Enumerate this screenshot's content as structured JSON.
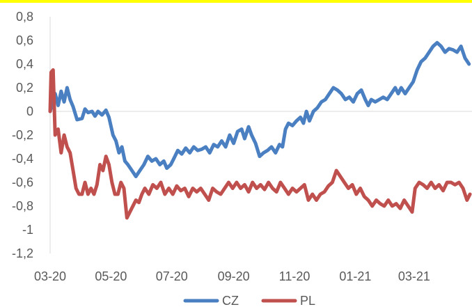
{
  "frame": {
    "top_border_color": "#ffff00"
  },
  "chart_data": {
    "type": "line",
    "title": "",
    "xlabel": "",
    "ylabel": "",
    "x_range": [
      "2020-03-01",
      "2021-04-28"
    ],
    "ylim": [
      -1.2,
      0.8
    ],
    "y_ticks": [
      0.8,
      0.6,
      0.4,
      0.2,
      0,
      -0.2,
      -0.4,
      -0.6,
      -0.8,
      -1,
      -1.2
    ],
    "y_tick_labels": [
      "0,8",
      "0,6",
      "0,4",
      "0,2",
      "0",
      "-0,2",
      "-0,4",
      "-0,6",
      "-0,8",
      "-1",
      "-1,2"
    ],
    "x_ticks": [
      "2020-03-01",
      "2020-05-01",
      "2020-07-01",
      "2020-09-01",
      "2020-11-01",
      "2021-01-01",
      "2021-03-01"
    ],
    "x_tick_labels": [
      "03-20",
      "05-20",
      "07-20",
      "09-20",
      "11-20",
      "01-21",
      "03-21"
    ],
    "grid": false,
    "legend_position": "bottom",
    "series": [
      {
        "name": "CZ",
        "color": "#4a7fc1",
        "points": [
          [
            "2020-03-01",
            0.0
          ],
          [
            "2020-03-06",
            0.15
          ],
          [
            "2020-03-09",
            0.05
          ],
          [
            "2020-03-12",
            0.17
          ],
          [
            "2020-03-15",
            0.08
          ],
          [
            "2020-03-18",
            0.2
          ],
          [
            "2020-03-21",
            0.1
          ],
          [
            "2020-03-24",
            0.04
          ],
          [
            "2020-03-28",
            -0.07
          ],
          [
            "2020-04-02",
            -0.06
          ],
          [
            "2020-04-05",
            0.02
          ],
          [
            "2020-04-08",
            -0.01
          ],
          [
            "2020-04-12",
            0.0
          ],
          [
            "2020-04-15",
            -0.04
          ],
          [
            "2020-04-18",
            0.0
          ],
          [
            "2020-04-22",
            -0.03
          ],
          [
            "2020-04-26",
            0.01
          ],
          [
            "2020-04-29",
            -0.05
          ],
          [
            "2020-05-03",
            -0.2
          ],
          [
            "2020-05-06",
            -0.25
          ],
          [
            "2020-05-09",
            -0.35
          ],
          [
            "2020-05-12",
            -0.3
          ],
          [
            "2020-05-15",
            -0.42
          ],
          [
            "2020-05-18",
            -0.45
          ],
          [
            "2020-05-22",
            -0.5
          ],
          [
            "2020-05-26",
            -0.55
          ],
          [
            "2020-05-30",
            -0.5
          ],
          [
            "2020-06-03",
            -0.45
          ],
          [
            "2020-06-07",
            -0.38
          ],
          [
            "2020-06-11",
            -0.42
          ],
          [
            "2020-06-15",
            -0.4
          ],
          [
            "2020-06-19",
            -0.45
          ],
          [
            "2020-06-23",
            -0.42
          ],
          [
            "2020-06-26",
            -0.48
          ],
          [
            "2020-06-30",
            -0.45
          ],
          [
            "2020-07-03",
            -0.4
          ],
          [
            "2020-07-07",
            -0.33
          ],
          [
            "2020-07-11",
            -0.36
          ],
          [
            "2020-07-15",
            -0.31
          ],
          [
            "2020-07-19",
            -0.35
          ],
          [
            "2020-07-23",
            -0.3
          ],
          [
            "2020-07-27",
            -0.33
          ],
          [
            "2020-07-31",
            -0.32
          ],
          [
            "2020-08-04",
            -0.3
          ],
          [
            "2020-08-08",
            -0.35
          ],
          [
            "2020-08-12",
            -0.28
          ],
          [
            "2020-08-16",
            -0.3
          ],
          [
            "2020-08-20",
            -0.25
          ],
          [
            "2020-08-24",
            -0.3
          ],
          [
            "2020-08-28",
            -0.2
          ],
          [
            "2020-09-01",
            -0.27
          ],
          [
            "2020-09-05",
            -0.17
          ],
          [
            "2020-09-09",
            -0.15
          ],
          [
            "2020-09-12",
            -0.23
          ],
          [
            "2020-09-16",
            -0.13
          ],
          [
            "2020-09-19",
            -0.2
          ],
          [
            "2020-09-23",
            -0.27
          ],
          [
            "2020-09-27",
            -0.38
          ],
          [
            "2020-10-01",
            -0.35
          ],
          [
            "2020-10-05",
            -0.33
          ],
          [
            "2020-10-09",
            -0.3
          ],
          [
            "2020-10-13",
            -0.35
          ],
          [
            "2020-10-17",
            -0.28
          ],
          [
            "2020-10-20",
            -0.3
          ],
          [
            "2020-10-23",
            -0.15
          ],
          [
            "2020-10-26",
            -0.1
          ],
          [
            "2020-10-30",
            -0.12
          ],
          [
            "2020-11-03",
            -0.08
          ],
          [
            "2020-11-07",
            -0.05
          ],
          [
            "2020-11-10",
            -0.1
          ],
          [
            "2020-11-13",
            0.0
          ],
          [
            "2020-11-16",
            -0.08
          ],
          [
            "2020-11-20",
            0.0
          ],
          [
            "2020-11-24",
            0.03
          ],
          [
            "2020-11-28",
            0.08
          ],
          [
            "2020-12-02",
            0.1
          ],
          [
            "2020-12-06",
            0.15
          ],
          [
            "2020-12-10",
            0.2
          ],
          [
            "2020-12-14",
            0.18
          ],
          [
            "2020-12-18",
            0.15
          ],
          [
            "2020-12-22",
            0.1
          ],
          [
            "2020-12-26",
            0.12
          ],
          [
            "2020-12-30",
            0.08
          ],
          [
            "2021-01-03",
            0.15
          ],
          [
            "2021-01-07",
            0.18
          ],
          [
            "2021-01-11",
            0.1
          ],
          [
            "2021-01-14",
            0.05
          ],
          [
            "2021-01-17",
            0.1
          ],
          [
            "2021-01-21",
            0.08
          ],
          [
            "2021-01-25",
            0.1
          ],
          [
            "2021-01-29",
            0.12
          ],
          [
            "2021-02-02",
            0.1
          ],
          [
            "2021-02-06",
            0.15
          ],
          [
            "2021-02-10",
            0.2
          ],
          [
            "2021-02-13",
            0.15
          ],
          [
            "2021-02-16",
            0.2
          ],
          [
            "2021-02-20",
            0.15
          ],
          [
            "2021-02-24",
            0.2
          ],
          [
            "2021-02-28",
            0.25
          ],
          [
            "2021-03-04",
            0.35
          ],
          [
            "2021-03-08",
            0.42
          ],
          [
            "2021-03-12",
            0.45
          ],
          [
            "2021-03-16",
            0.5
          ],
          [
            "2021-03-20",
            0.55
          ],
          [
            "2021-03-24",
            0.58
          ],
          [
            "2021-03-28",
            0.55
          ],
          [
            "2021-04-01",
            0.5
          ],
          [
            "2021-04-05",
            0.53
          ],
          [
            "2021-04-09",
            0.52
          ],
          [
            "2021-04-13",
            0.5
          ],
          [
            "2021-04-17",
            0.55
          ],
          [
            "2021-04-21",
            0.45
          ],
          [
            "2021-04-25",
            0.4
          ]
        ]
      },
      {
        "name": "PL",
        "color": "#c0504d",
        "points": [
          [
            "2020-03-01",
            0.0
          ],
          [
            "2020-03-02",
            0.33
          ],
          [
            "2020-03-04",
            0.35
          ],
          [
            "2020-03-06",
            -0.2
          ],
          [
            "2020-03-09",
            -0.15
          ],
          [
            "2020-03-12",
            -0.35
          ],
          [
            "2020-03-15",
            -0.2
          ],
          [
            "2020-03-18",
            -0.3
          ],
          [
            "2020-03-21",
            -0.35
          ],
          [
            "2020-03-24",
            -0.5
          ],
          [
            "2020-03-27",
            -0.65
          ],
          [
            "2020-03-30",
            -0.7
          ],
          [
            "2020-04-02",
            -0.7
          ],
          [
            "2020-04-05",
            -0.6
          ],
          [
            "2020-04-08",
            -0.7
          ],
          [
            "2020-04-11",
            -0.65
          ],
          [
            "2020-04-14",
            -0.7
          ],
          [
            "2020-04-17",
            -0.62
          ],
          [
            "2020-04-20",
            -0.45
          ],
          [
            "2020-04-23",
            -0.5
          ],
          [
            "2020-04-26",
            -0.38
          ],
          [
            "2020-04-29",
            -0.45
          ],
          [
            "2020-05-02",
            -0.6
          ],
          [
            "2020-05-05",
            -0.7
          ],
          [
            "2020-05-08",
            -0.7
          ],
          [
            "2020-05-11",
            -0.6
          ],
          [
            "2020-05-14",
            -0.65
          ],
          [
            "2020-05-17",
            -0.9
          ],
          [
            "2020-05-20",
            -0.85
          ],
          [
            "2020-05-23",
            -0.8
          ],
          [
            "2020-05-26",
            -0.75
          ],
          [
            "2020-05-29",
            -0.77
          ],
          [
            "2020-06-01",
            -0.7
          ],
          [
            "2020-06-04",
            -0.65
          ],
          [
            "2020-06-08",
            -0.7
          ],
          [
            "2020-06-12",
            -0.62
          ],
          [
            "2020-06-16",
            -0.65
          ],
          [
            "2020-06-20",
            -0.6
          ],
          [
            "2020-06-24",
            -0.7
          ],
          [
            "2020-06-28",
            -0.65
          ],
          [
            "2020-07-02",
            -0.7
          ],
          [
            "2020-07-06",
            -0.63
          ],
          [
            "2020-07-10",
            -0.67
          ],
          [
            "2020-07-14",
            -0.65
          ],
          [
            "2020-07-18",
            -0.72
          ],
          [
            "2020-07-22",
            -0.65
          ],
          [
            "2020-07-26",
            -0.68
          ],
          [
            "2020-07-30",
            -0.65
          ],
          [
            "2020-08-03",
            -0.7
          ],
          [
            "2020-08-07",
            -0.75
          ],
          [
            "2020-08-11",
            -0.65
          ],
          [
            "2020-08-15",
            -0.68
          ],
          [
            "2020-08-19",
            -0.7
          ],
          [
            "2020-08-23",
            -0.65
          ],
          [
            "2020-08-27",
            -0.6
          ],
          [
            "2020-08-31",
            -0.65
          ],
          [
            "2020-09-04",
            -0.6
          ],
          [
            "2020-09-08",
            -0.65
          ],
          [
            "2020-09-12",
            -0.62
          ],
          [
            "2020-09-16",
            -0.68
          ],
          [
            "2020-09-20",
            -0.6
          ],
          [
            "2020-09-24",
            -0.65
          ],
          [
            "2020-09-28",
            -0.62
          ],
          [
            "2020-10-02",
            -0.66
          ],
          [
            "2020-10-06",
            -0.6
          ],
          [
            "2020-10-10",
            -0.65
          ],
          [
            "2020-10-14",
            -0.68
          ],
          [
            "2020-10-18",
            -0.6
          ],
          [
            "2020-10-22",
            -0.65
          ],
          [
            "2020-10-26",
            -0.7
          ],
          [
            "2020-10-30",
            -0.65
          ],
          [
            "2020-11-03",
            -0.68
          ],
          [
            "2020-11-07",
            -0.65
          ],
          [
            "2020-11-11",
            -0.62
          ],
          [
            "2020-11-15",
            -0.75
          ],
          [
            "2020-11-19",
            -0.7
          ],
          [
            "2020-11-23",
            -0.75
          ],
          [
            "2020-11-27",
            -0.7
          ],
          [
            "2020-12-01",
            -0.68
          ],
          [
            "2020-12-05",
            -0.63
          ],
          [
            "2020-12-09",
            -0.6
          ],
          [
            "2020-12-13",
            -0.5
          ],
          [
            "2020-12-17",
            -0.55
          ],
          [
            "2020-12-21",
            -0.6
          ],
          [
            "2020-12-25",
            -0.65
          ],
          [
            "2020-12-29",
            -0.62
          ],
          [
            "2021-01-02",
            -0.7
          ],
          [
            "2021-01-06",
            -0.65
          ],
          [
            "2021-01-10",
            -0.72
          ],
          [
            "2021-01-14",
            -0.75
          ],
          [
            "2021-01-18",
            -0.8
          ],
          [
            "2021-01-22",
            -0.75
          ],
          [
            "2021-01-26",
            -0.78
          ],
          [
            "2021-01-30",
            -0.8
          ],
          [
            "2021-02-03",
            -0.75
          ],
          [
            "2021-02-07",
            -0.8
          ],
          [
            "2021-02-11",
            -0.78
          ],
          [
            "2021-02-15",
            -0.82
          ],
          [
            "2021-02-19",
            -0.75
          ],
          [
            "2021-02-23",
            -0.8
          ],
          [
            "2021-02-27",
            -0.85
          ],
          [
            "2021-03-02",
            -0.65
          ],
          [
            "2021-03-06",
            -0.6
          ],
          [
            "2021-03-10",
            -0.62
          ],
          [
            "2021-03-14",
            -0.65
          ],
          [
            "2021-03-18",
            -0.6
          ],
          [
            "2021-03-22",
            -0.65
          ],
          [
            "2021-03-26",
            -0.62
          ],
          [
            "2021-03-30",
            -0.67
          ],
          [
            "2021-04-03",
            -0.6
          ],
          [
            "2021-04-07",
            -0.6
          ],
          [
            "2021-04-11",
            -0.62
          ],
          [
            "2021-04-15",
            -0.6
          ],
          [
            "2021-04-19",
            -0.65
          ],
          [
            "2021-04-23",
            -0.75
          ],
          [
            "2021-04-26",
            -0.7
          ]
        ]
      }
    ]
  }
}
